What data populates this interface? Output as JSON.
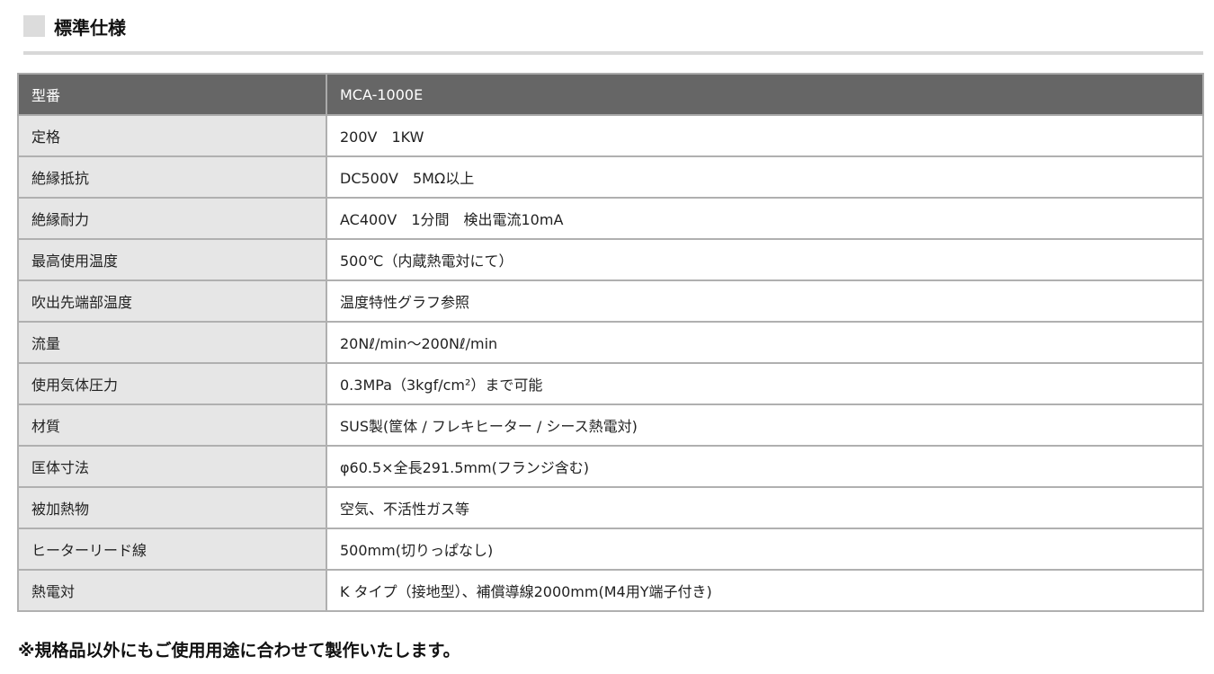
{
  "title": "標準仕様",
  "header": {
    "label": "型番",
    "value": "MCA-1000E"
  },
  "rows": [
    {
      "label": "定格",
      "value": "200V　1KW"
    },
    {
      "label": "絶縁抵抗",
      "value": "DC500V　5MΩ以上"
    },
    {
      "label": "絶縁耐力",
      "value": "AC400V　1分間　検出電流10mA"
    },
    {
      "label": "最高使用温度",
      "value": "500℃（内蔵熱電対にて）"
    },
    {
      "label": "吹出先端部温度",
      "value": "温度特性グラフ参照"
    },
    {
      "label": "流量",
      "value": "20Nℓ/min〜200Nℓ/min"
    },
    {
      "label": "使用気体圧力",
      "value": "0.3MPa（3kgf/cm²）まで可能"
    },
    {
      "label": "材質",
      "value": "SUS製(筐体 / フレキヒーター / シース熱電対)"
    },
    {
      "label": "匡体寸法",
      "value": "φ60.5×全長291.5mm(フランジ含む)"
    },
    {
      "label": "被加熱物",
      "value": "空気、不活性ガス等"
    },
    {
      "label": "ヒーターリード線",
      "value": "500mm(切りっぱなし)"
    },
    {
      "label": "熱電対",
      "value": "K タイプ（接地型）、補償導線2000mm(M4用Y端子付き)"
    }
  ],
  "note": "※規格品以外にもご使用用途に合わせて製作いたします。"
}
